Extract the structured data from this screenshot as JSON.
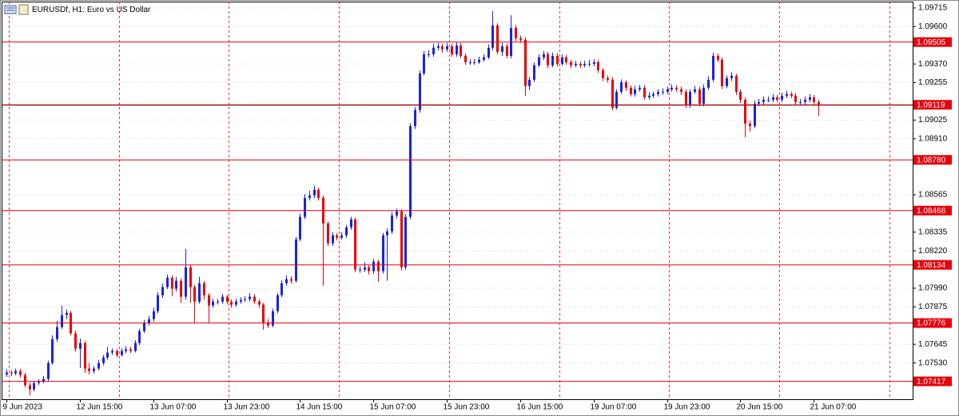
{
  "chart_data": {
    "type": "candlestick",
    "title": "EURUSDf, H1:  Euro vs US Dollar",
    "bull_color": "#1a22e0",
    "bear_color": "#e8000b",
    "level_color": "#e8000b",
    "grid": true,
    "categories": [
      "9 Jun 2023",
      null,
      null,
      null,
      null,
      null,
      null,
      null,
      null,
      null,
      null,
      null,
      null,
      null,
      null,
      null,
      "12 Jun 15:00",
      null,
      null,
      null,
      null,
      null,
      null,
      null,
      null,
      null,
      null,
      null,
      null,
      null,
      null,
      null,
      "13 Jun 07:00",
      null,
      null,
      null,
      null,
      null,
      null,
      null,
      null,
      null,
      null,
      null,
      null,
      null,
      null,
      null,
      "13 Jun 23:00",
      null,
      null,
      null,
      null,
      null,
      null,
      null,
      null,
      null,
      null,
      null,
      null,
      null,
      null,
      null,
      "14 Jun 15:00",
      null,
      null,
      null,
      null,
      null,
      null,
      null,
      null,
      null,
      null,
      null,
      null,
      null,
      null,
      null,
      "15 Jun 07:00",
      null,
      null,
      null,
      null,
      null,
      null,
      null,
      null,
      null,
      null,
      null,
      null,
      null,
      null,
      null,
      "15 Jun 23:00",
      null,
      null,
      null,
      null,
      null,
      null,
      null,
      null,
      null,
      null,
      null,
      null,
      null,
      null,
      null,
      "16 Jun 15:00",
      null,
      null,
      null,
      null,
      null,
      null,
      null,
      null,
      null,
      null,
      null,
      null,
      null,
      null,
      null,
      "19 Jun 07:00",
      null,
      null,
      null,
      null,
      null,
      null,
      null,
      null,
      null,
      null,
      null,
      null,
      null,
      null,
      null,
      "19 Jun 23:00",
      null,
      null,
      null,
      null,
      null,
      null,
      null,
      null,
      null,
      null,
      null,
      null,
      null,
      null,
      null,
      "20 Jun 15:00",
      null,
      null,
      null,
      null,
      null,
      null,
      null,
      null,
      null,
      null,
      null,
      null,
      null,
      null,
      null,
      "21 Jun 07:00",
      null
    ],
    "close": [
      1.07471,
      1.07466,
      1.07481,
      1.07456,
      1.07393,
      1.07368,
      1.07407,
      1.07417,
      1.07432,
      1.0753,
      1.07677,
      1.07751,
      1.07825,
      1.07839,
      1.07712,
      1.07618,
      1.07653,
      1.07496,
      1.07481,
      1.07496,
      1.0753,
      1.07564,
      1.07594,
      1.07604,
      1.07579,
      1.07604,
      1.07614,
      1.07604,
      1.07653,
      1.07726,
      1.07776,
      1.078,
      1.07849,
      1.07947,
      1.07997,
      1.08055,
      1.07987,
      1.08036,
      1.07938,
      1.08119,
      1.07997,
      1.07908,
      1.08021,
      1.07947,
      1.07884,
      1.07908,
      1.07908,
      1.07938,
      1.07908,
      1.07889,
      1.07908,
      1.07918,
      1.07923,
      1.07938,
      1.07908,
      1.07889,
      1.07776,
      1.07761,
      1.07849,
      1.07947,
      1.08021,
      1.08046,
      1.08036,
      1.08291,
      1.08429,
      1.08546,
      1.08561,
      1.08596,
      1.08546,
      1.08389,
      1.08267,
      1.08316,
      1.08301,
      1.08316,
      1.08365,
      1.08414,
      1.08105,
      1.08105,
      1.08119,
      1.08095,
      1.08154,
      1.08095,
      1.08316,
      1.0834,
      1.08438,
      1.08463,
      1.08119,
      1.08429,
      1.08988,
      1.09087,
      1.09312,
      1.0943,
      1.0943,
      1.0947,
      1.09479,
      1.0946,
      1.09479,
      1.0943,
      1.09484,
      1.0942,
      1.09381,
      1.09381,
      1.09381,
      1.09396,
      1.09411,
      1.0947,
      1.09607,
      1.09445,
      1.09479,
      1.0942,
      1.09592,
      1.09528,
      1.09519,
      1.09234,
      1.09273,
      1.09362,
      1.09411,
      1.0943,
      1.09362,
      1.0942,
      1.09371,
      1.09411,
      1.09381,
      1.09362,
      1.09371,
      1.09362,
      1.09371,
      1.09371,
      1.09381,
      1.09332,
      1.09283,
      1.09273,
      1.09101,
      1.09199,
      1.09258,
      1.09224,
      1.09185,
      1.09214,
      1.09224,
      1.09165,
      1.09175,
      1.09185,
      1.09199,
      1.09199,
      1.09214,
      1.09224,
      1.09214,
      1.09199,
      1.09116,
      1.09199,
      1.09214,
      1.09126,
      1.09224,
      1.09273,
      1.0942,
      1.09396,
      1.09234,
      1.09283,
      1.09298,
      1.09199,
      1.0915,
      1.09003,
      1.08988,
      1.09126,
      1.09136,
      1.0915,
      1.0915,
      1.09165,
      1.0915,
      1.09175,
      1.09185,
      1.09175,
      1.09136,
      1.09136,
      1.0915,
      1.09165,
      1.09136,
      1.09116
    ],
    "open": [
      1.0746,
      1.07471,
      1.07466,
      1.07481,
      1.07456,
      1.07393,
      1.07368,
      1.07407,
      1.07417,
      1.07432,
      1.0753,
      1.07677,
      1.07751,
      1.07825,
      1.07839,
      1.07712,
      1.07618,
      1.07653,
      1.07496,
      1.07481,
      1.07496,
      1.0753,
      1.07564,
      1.07594,
      1.07604,
      1.07579,
      1.07604,
      1.07614,
      1.07604,
      1.07653,
      1.07726,
      1.07776,
      1.078,
      1.07849,
      1.07947,
      1.07997,
      1.08055,
      1.07987,
      1.08036,
      1.07938,
      1.08119,
      1.07997,
      1.07908,
      1.08021,
      1.07947,
      1.07884,
      1.07908,
      1.07908,
      1.07938,
      1.07908,
      1.07889,
      1.07908,
      1.07918,
      1.07923,
      1.07938,
      1.07908,
      1.07889,
      1.07776,
      1.07761,
      1.07849,
      1.07947,
      1.08021,
      1.08046,
      1.08036,
      1.08291,
      1.08429,
      1.08546,
      1.08561,
      1.08596,
      1.08546,
      1.08389,
      1.08267,
      1.08316,
      1.08301,
      1.08316,
      1.08365,
      1.08414,
      1.08105,
      1.08105,
      1.08119,
      1.08095,
      1.08154,
      1.08095,
      1.08316,
      1.0834,
      1.08438,
      1.08463,
      1.08119,
      1.08429,
      1.08988,
      1.09087,
      1.09312,
      1.0943,
      1.0943,
      1.0947,
      1.09479,
      1.0946,
      1.09479,
      1.0943,
      1.09484,
      1.0942,
      1.09381,
      1.09381,
      1.09381,
      1.09396,
      1.09411,
      1.0947,
      1.09607,
      1.09445,
      1.09479,
      1.0942,
      1.09592,
      1.09528,
      1.09519,
      1.09234,
      1.09273,
      1.09362,
      1.09411,
      1.0943,
      1.09362,
      1.0942,
      1.09371,
      1.09411,
      1.09381,
      1.09362,
      1.09371,
      1.09362,
      1.09371,
      1.09371,
      1.09381,
      1.09332,
      1.09283,
      1.09273,
      1.09101,
      1.09199,
      1.09258,
      1.09224,
      1.09185,
      1.09214,
      1.09224,
      1.09165,
      1.09175,
      1.09185,
      1.09199,
      1.09199,
      1.09214,
      1.09224,
      1.09214,
      1.09199,
      1.09116,
      1.09199,
      1.09214,
      1.09126,
      1.09224,
      1.09273,
      1.0942,
      1.09396,
      1.09234,
      1.09283,
      1.09298,
      1.09199,
      1.0915,
      1.09003,
      1.08988,
      1.09126,
      1.09136,
      1.0915,
      1.0915,
      1.09165,
      1.0915,
      1.09175,
      1.09185,
      1.09175,
      1.09136,
      1.09136,
      1.0915,
      1.09165,
      1.09136
    ],
    "high": [
      1.0749,
      1.07485,
      1.07495,
      1.07495,
      1.0747,
      1.0741,
      1.0742,
      1.0743,
      1.0745,
      1.07545,
      1.077,
      1.0779,
      1.07884,
      1.0786,
      1.0785,
      1.0773,
      1.0768,
      1.07665,
      1.0753,
      1.0751,
      1.0755,
      1.0758,
      1.0763,
      1.0762,
      1.07615,
      1.0762,
      1.07635,
      1.0763,
      1.0767,
      1.0774,
      1.07795,
      1.0782,
      1.0787,
      1.07965,
      1.0802,
      1.08075,
      1.0807,
      1.0806,
      1.0805,
      1.08232,
      1.08135,
      1.0801,
      1.0806,
      1.08035,
      1.0796,
      1.07925,
      1.07925,
      1.07955,
      1.0795,
      1.0792,
      1.07925,
      1.07935,
      1.0794,
      1.0796,
      1.07955,
      1.0792,
      1.079,
      1.078,
      1.07865,
      1.0796,
      1.0804,
      1.0807,
      1.08065,
      1.08305,
      1.0845,
      1.0857,
      1.0859,
      1.0862,
      1.0861,
      1.0856,
      1.084,
      1.08335,
      1.0833,
      1.08335,
      1.0838,
      1.0843,
      1.08425,
      1.08125,
      1.0815,
      1.08135,
      1.0817,
      1.08165,
      1.0833,
      1.0836,
      1.0846,
      1.0848,
      1.08475,
      1.08445,
      1.09005,
      1.09105,
      1.0933,
      1.0945,
      1.09455,
      1.09495,
      1.095,
      1.09495,
      1.095,
      1.09495,
      1.09505,
      1.095,
      1.09435,
      1.094,
      1.094,
      1.09415,
      1.0943,
      1.0949,
      1.09695,
      1.0962,
      1.095,
      1.09495,
      1.0967,
      1.0961,
      1.09545,
      1.09535,
      1.0929,
      1.0938,
      1.0943,
      1.0945,
      1.09445,
      1.0944,
      1.09435,
      1.0943,
      1.09425,
      1.09395,
      1.0939,
      1.09385,
      1.0939,
      1.09395,
      1.094,
      1.09395,
      1.09345,
      1.093,
      1.0929,
      1.09215,
      1.09275,
      1.0927,
      1.0924,
      1.09235,
      1.0924,
      1.0924,
      1.09195,
      1.092,
      1.09215,
      1.0922,
      1.0923,
      1.09245,
      1.0924,
      1.0923,
      1.09215,
      1.09215,
      1.09235,
      1.0923,
      1.09245,
      1.09295,
      1.0944,
      1.09435,
      1.0941,
      1.093,
      1.0932,
      1.0931,
      1.09215,
      1.09165,
      1.0902,
      1.09145,
      1.09155,
      1.0917,
      1.0917,
      1.09185,
      1.0918,
      1.09195,
      1.09205,
      1.092,
      1.0919,
      1.09155,
      1.0917,
      1.09185,
      1.0918,
      1.0915
    ],
    "low": [
      1.07445,
      1.0745,
      1.07455,
      1.0744,
      1.0738,
      1.0733,
      1.07355,
      1.07395,
      1.07405,
      1.0742,
      1.0752,
      1.0766,
      1.0774,
      1.078,
      1.077,
      1.076,
      1.075,
      1.0747,
      1.0746,
      1.07465,
      1.07485,
      1.07515,
      1.0755,
      1.0758,
      1.07565,
      1.0757,
      1.0759,
      1.0759,
      1.07595,
      1.0764,
      1.07715,
      1.0776,
      1.07785,
      1.07835,
      1.0793,
      1.07985,
      1.0794,
      1.0797,
      1.079,
      1.0792,
      1.079,
      1.07776,
      1.07895,
      1.0792,
      1.07776,
      1.0787,
      1.0789,
      1.07895,
      1.0789,
      1.0787,
      1.07875,
      1.07895,
      1.07905,
      1.0791,
      1.07895,
      1.0787,
      1.07736,
      1.07745,
      1.0775,
      1.07835,
      1.07935,
      1.08005,
      1.0802,
      1.08025,
      1.0828,
      1.08415,
      1.0853,
      1.08545,
      1.0853,
      1.08006,
      1.0825,
      1.0825,
      1.08285,
      1.0829,
      1.083,
      1.0835,
      1.0809,
      1.08085,
      1.0809,
      1.08075,
      1.0808,
      1.0803,
      1.0808,
      1.08036,
      1.08325,
      1.0842,
      1.081,
      1.08105,
      1.08415,
      1.0897,
      1.0907,
      1.093,
      1.0941,
      1.09415,
      1.09455,
      1.0944,
      1.09445,
      1.09415,
      1.09415,
      1.09405,
      1.09365,
      1.09365,
      1.09365,
      1.0937,
      1.09385,
      1.094,
      1.09455,
      1.0943,
      1.0942,
      1.09405,
      1.09405,
      1.0951,
      1.095,
      1.09175,
      1.0921,
      1.0926,
      1.0935,
      1.09395,
      1.09345,
      1.0935,
      1.09355,
      1.0936,
      1.09365,
      1.09345,
      1.0935,
      1.09345,
      1.0935,
      1.09355,
      1.09355,
      1.09315,
      1.09265,
      1.09255,
      1.09085,
      1.0909,
      1.09185,
      1.09205,
      1.0917,
      1.0917,
      1.092,
      1.0915,
      1.0915,
      1.0916,
      1.0917,
      1.0918,
      1.09185,
      1.092,
      1.092,
      1.0918,
      1.091,
      1.091,
      1.09185,
      1.0911,
      1.0911,
      1.0921,
      1.0926,
      1.0938,
      1.09215,
      1.0922,
      1.09265,
      1.0918,
      1.0913,
      1.0892,
      1.08954,
      1.08975,
      1.0911,
      1.0912,
      1.09135,
      1.09135,
      1.09135,
      1.09135,
      1.0916,
      1.0916,
      1.0912,
      1.0912,
      1.0912,
      1.09135,
      1.0912,
      1.0905
    ],
    "ylim": [
      1.07307,
      1.09754
    ],
    "yticks": [
      1.09715,
      {
        "value": 1.096,
        "label": "1.09600"
      },
      {
        "value": 1.0937,
        "label": "1.09370"
      },
      1.09255,
      1.09025,
      {
        "value": 1.0891,
        "label": "1.08910"
      },
      1.08565,
      1.08335,
      {
        "value": 1.0822,
        "label": "1.08220"
      },
      {
        "value": 1.0799,
        "label": "1.07990"
      },
      1.07875,
      1.07645,
      {
        "value": 1.0753,
        "label": "1.07530"
      }
    ],
    "levels": [
      1.09505,
      1.09119,
      {
        "value": 1.0878,
        "label": "1.08780"
      },
      1.08468,
      1.08134,
      1.07776,
      1.07417
    ]
  }
}
